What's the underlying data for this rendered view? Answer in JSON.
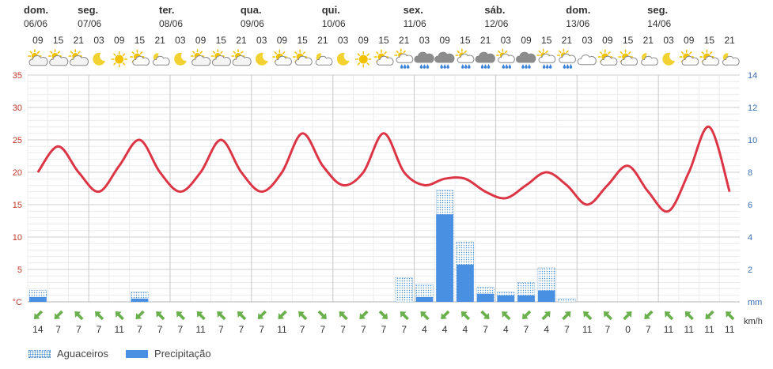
{
  "chart_data": {
    "type": "line",
    "days": [
      {
        "name": "dom.",
        "date": "06/06"
      },
      {
        "name": "seg.",
        "date": "07/06"
      },
      {
        "name": "ter.",
        "date": "08/06"
      },
      {
        "name": "qua.",
        "date": "09/06"
      },
      {
        "name": "qui.",
        "date": "10/06"
      },
      {
        "name": "sex.",
        "date": "11/06"
      },
      {
        "name": "sáb.",
        "date": "12/06"
      },
      {
        "name": "dom.",
        "date": "13/06"
      },
      {
        "name": "seg.",
        "date": "14/06"
      }
    ],
    "hours": [
      "09",
      "15",
      "21",
      "03",
      "09",
      "15",
      "21",
      "03",
      "09",
      "15",
      "21",
      "03",
      "09",
      "15",
      "21",
      "03",
      "09",
      "15",
      "21",
      "03",
      "09",
      "15",
      "21",
      "03",
      "09",
      "15",
      "21",
      "03",
      "09",
      "15",
      "21",
      "03",
      "09",
      "15",
      "21"
    ],
    "icons": [
      "partly-cloudy-icon",
      "partly-cloudy-icon",
      "partly-cloudy-icon",
      "moon-icon",
      "sun-icon",
      "partly-sunny-icon",
      "cloudy-night-icon",
      "moon-icon",
      "partly-cloudy-icon",
      "partly-cloudy-icon",
      "partly-cloudy-icon",
      "moon-icon",
      "partly-sunny-icon",
      "partly-sunny-icon",
      "cloudy-night-icon",
      "moon-icon",
      "sun-icon",
      "partly-sunny-icon",
      "rain-showers-icon",
      "storm-rain-icon",
      "storm-rain-icon",
      "rain-showers-icon",
      "storm-rain-icon",
      "rain-showers-icon",
      "storm-rain-icon",
      "rain-showers-icon",
      "rain-showers-icon",
      "cloudy-icon",
      "partly-sunny-icon",
      "partly-sunny-icon",
      "cloudy-night-icon",
      "moon-icon",
      "partly-sunny-icon",
      "partly-sunny-icon",
      "cloudy-night-icon"
    ],
    "temperature": [
      20,
      24,
      20,
      17,
      21,
      25,
      20,
      17,
      20,
      25,
      20,
      17,
      20,
      26,
      21,
      18,
      20,
      26,
      20,
      18,
      19,
      19,
      17,
      16,
      18,
      20,
      18,
      15,
      18,
      21,
      17,
      14,
      20,
      27,
      17
    ],
    "precipitation": [
      0.3,
      0,
      0,
      0,
      0,
      0.2,
      0,
      0,
      0,
      0,
      0,
      0,
      0,
      0,
      0,
      0,
      0,
      0,
      0,
      0.3,
      5.4,
      2.3,
      0.5,
      0.4,
      0.4,
      0.7,
      0,
      0,
      0,
      0,
      0,
      0,
      0,
      0,
      0
    ],
    "showers": [
      0.4,
      0,
      0,
      0,
      0,
      0.4,
      0,
      0,
      0,
      0,
      0,
      0,
      0,
      0,
      0,
      0,
      0,
      0,
      1.5,
      0.8,
      1.5,
      1.4,
      0.4,
      0.2,
      0.8,
      1.4,
      0.2,
      0,
      0,
      0,
      0,
      0,
      0,
      0,
      0
    ],
    "wind_speed": [
      14,
      7,
      7,
      7,
      11,
      7,
      7,
      7,
      11,
      7,
      7,
      7,
      11,
      7,
      7,
      7,
      7,
      7,
      7,
      4,
      4,
      4,
      7,
      4,
      7,
      4,
      7,
      11,
      7,
      0,
      7,
      11,
      11,
      11,
      11
    ],
    "wind_direction_deg": [
      225,
      225,
      315,
      315,
      315,
      225,
      315,
      315,
      315,
      315,
      315,
      225,
      225,
      315,
      135,
      315,
      225,
      135,
      315,
      315,
      225,
      315,
      135,
      315,
      225,
      45,
      45,
      315,
      315,
      45,
      225,
      315,
      315,
      225,
      315
    ],
    "y_left": {
      "min": 0,
      "max": 35,
      "ticks": [
        "°C",
        "5",
        "10",
        "15",
        "20",
        "25",
        "30",
        "35"
      ],
      "unit": "°C"
    },
    "y_right": {
      "min": 0,
      "max": 14,
      "ticks": [
        "mm",
        "2",
        "4",
        "6",
        "8",
        "10",
        "12",
        "14"
      ],
      "unit": "mm"
    },
    "wind_unit": "km/h",
    "legend": [
      {
        "label": "Aguaceiros",
        "style": "dotted",
        "color": "#4a8fd0"
      },
      {
        "label": "Precipitação",
        "style": "solid",
        "color": "#4a90e2"
      }
    ],
    "colors": {
      "temperature": "#dc3545",
      "precipitation": "#4a90e2",
      "showers": "#4a8fd0",
      "wind_arrow": "#6ab04c",
      "left_axis": "#c0392b",
      "right_axis": "#3a6fb0"
    },
    "grid": true
  }
}
